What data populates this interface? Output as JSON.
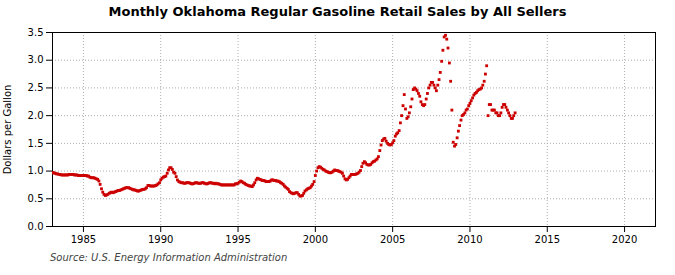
{
  "chart_data": {
    "type": "scatter",
    "title": "Monthly Oklahoma Regular Gasoline Retail Sales by All Sellers",
    "ylabel": "Dollars per Gallon",
    "annotations": [
      "Source: U.S. Energy Information Administration"
    ],
    "color": "#cc0000",
    "marker": "square",
    "grid": true,
    "xlim": [
      1983.0,
      2022.0
    ],
    "ylim": [
      0.0,
      3.5
    ],
    "xticks": [
      1985,
      1990,
      1995,
      2000,
      2005,
      2010,
      2015,
      2020
    ],
    "yticks": [
      {
        "value": 0.0,
        "label": "0.0"
      },
      0.5,
      {
        "value": 1.0,
        "label": "1.0"
      },
      1.5,
      {
        "value": 2.0,
        "label": "2.0"
      },
      2.5,
      {
        "value": 3.0,
        "label": "3.0"
      },
      3.5
    ],
    "x": [
      1983.0,
      1983.08,
      1983.17,
      1983.25,
      1983.33,
      1983.42,
      1983.5,
      1983.58,
      1983.67,
      1983.75,
      1983.83,
      1983.92,
      1984.0,
      1984.08,
      1984.17,
      1984.25,
      1984.33,
      1984.42,
      1984.5,
      1984.58,
      1984.67,
      1984.75,
      1984.83,
      1984.92,
      1985.0,
      1985.08,
      1985.17,
      1985.25,
      1985.33,
      1985.42,
      1985.5,
      1985.58,
      1985.67,
      1985.75,
      1985.83,
      1985.92,
      1986.0,
      1986.08,
      1986.17,
      1986.25,
      1986.33,
      1986.42,
      1986.5,
      1986.58,
      1986.67,
      1986.75,
      1986.83,
      1986.92,
      1987.0,
      1987.08,
      1987.17,
      1987.25,
      1987.33,
      1987.42,
      1987.5,
      1987.58,
      1987.67,
      1987.75,
      1987.83,
      1987.92,
      1988.0,
      1988.08,
      1988.17,
      1988.25,
      1988.33,
      1988.42,
      1988.5,
      1988.58,
      1988.67,
      1988.75,
      1988.83,
      1988.92,
      1989.0,
      1989.08,
      1989.17,
      1989.25,
      1989.33,
      1989.42,
      1989.5,
      1989.58,
      1989.67,
      1989.75,
      1989.83,
      1989.92,
      1990.0,
      1990.08,
      1990.17,
      1990.25,
      1990.33,
      1990.42,
      1990.5,
      1990.58,
      1990.67,
      1990.75,
      1990.83,
      1990.92,
      1991.0,
      1991.08,
      1991.17,
      1991.25,
      1991.33,
      1991.42,
      1991.5,
      1991.58,
      1991.67,
      1991.75,
      1991.83,
      1991.92,
      1992.0,
      1992.08,
      1992.17,
      1992.25,
      1992.33,
      1992.42,
      1992.5,
      1992.58,
      1992.67,
      1992.75,
      1992.83,
      1992.92,
      1993.0,
      1993.08,
      1993.17,
      1993.25,
      1993.33,
      1993.42,
      1993.5,
      1993.58,
      1993.67,
      1993.75,
      1993.83,
      1993.92,
      1994.0,
      1994.08,
      1994.17,
      1994.25,
      1994.33,
      1994.42,
      1994.5,
      1994.58,
      1994.67,
      1994.75,
      1994.83,
      1994.92,
      1995.0,
      1995.08,
      1995.17,
      1995.25,
      1995.33,
      1995.42,
      1995.5,
      1995.58,
      1995.67,
      1995.75,
      1995.83,
      1995.92,
      1996.0,
      1996.08,
      1996.17,
      1996.25,
      1996.33,
      1996.42,
      1996.5,
      1996.58,
      1996.67,
      1996.75,
      1996.83,
      1996.92,
      1997.0,
      1997.08,
      1997.17,
      1997.25,
      1997.33,
      1997.42,
      1997.5,
      1997.58,
      1997.67,
      1997.75,
      1997.83,
      1997.92,
      1998.0,
      1998.08,
      1998.17,
      1998.25,
      1998.33,
      1998.42,
      1998.5,
      1998.58,
      1998.67,
      1998.75,
      1998.83,
      1998.92,
      1999.0,
      1999.08,
      1999.17,
      1999.25,
      1999.33,
      1999.42,
      1999.5,
      1999.58,
      1999.67,
      1999.75,
      1999.83,
      1999.92,
      2000.0,
      2000.08,
      2000.17,
      2000.25,
      2000.33,
      2000.42,
      2000.5,
      2000.58,
      2000.67,
      2000.75,
      2000.83,
      2000.92,
      2001.0,
      2001.08,
      2001.17,
      2001.25,
      2001.33,
      2001.42,
      2001.5,
      2001.58,
      2001.67,
      2001.75,
      2001.83,
      2001.92,
      2002.0,
      2002.08,
      2002.17,
      2002.25,
      2002.33,
      2002.42,
      2002.5,
      2002.58,
      2002.67,
      2002.75,
      2002.83,
      2002.92,
      2003.0,
      2003.08,
      2003.17,
      2003.25,
      2003.33,
      2003.42,
      2003.5,
      2003.58,
      2003.67,
      2003.75,
      2003.83,
      2003.92,
      2004.0,
      2004.08,
      2004.17,
      2004.25,
      2004.33,
      2004.42,
      2004.5,
      2004.58,
      2004.67,
      2004.75,
      2004.83,
      2004.92,
      2005.0,
      2005.08,
      2005.17,
      2005.25,
      2005.33,
      2005.42,
      2005.5,
      2005.58,
      2005.67,
      2005.75,
      2005.83,
      2005.92,
      2006.0,
      2006.08,
      2006.17,
      2006.25,
      2006.33,
      2006.42,
      2006.5,
      2006.58,
      2006.67,
      2006.75,
      2006.83,
      2006.92,
      2007.0,
      2007.08,
      2007.17,
      2007.25,
      2007.33,
      2007.42,
      2007.5,
      2007.58,
      2007.67,
      2007.75,
      2007.83,
      2007.92,
      2008.0,
      2008.08,
      2008.17,
      2008.25,
      2008.33,
      2008.42,
      2008.5,
      2008.58,
      2008.67,
      2008.75,
      2008.83,
      2008.92,
      2009.0,
      2009.08,
      2009.17,
      2009.25,
      2009.33,
      2009.42,
      2009.5,
      2009.58,
      2009.67,
      2009.75,
      2009.83,
      2009.92,
      2010.0,
      2010.08,
      2010.17,
      2010.25,
      2010.33,
      2010.42,
      2010.5,
      2010.58,
      2010.67,
      2010.75,
      2010.83,
      2010.92,
      2011.0,
      2011.08,
      2011.17,
      2011.25,
      2011.33,
      2011.42,
      2011.5,
      2011.58,
      2011.67,
      2011.75,
      2011.83,
      2011.92,
      2012.0,
      2012.08,
      2012.17,
      2012.25,
      2012.33,
      2012.42,
      2012.5,
      2012.58,
      2012.67,
      2012.75,
      2012.83,
      2012.92
    ],
    "values": [
      0.97,
      0.97,
      0.96,
      0.95,
      0.95,
      0.94,
      0.94,
      0.93,
      0.93,
      0.93,
      0.93,
      0.93,
      0.93,
      0.94,
      0.94,
      0.94,
      0.94,
      0.93,
      0.93,
      0.93,
      0.92,
      0.92,
      0.92,
      0.92,
      0.92,
      0.92,
      0.92,
      0.91,
      0.91,
      0.89,
      0.88,
      0.88,
      0.88,
      0.87,
      0.86,
      0.85,
      0.82,
      0.76,
      0.68,
      0.62,
      0.58,
      0.56,
      0.57,
      0.58,
      0.6,
      0.61,
      0.62,
      0.61,
      0.62,
      0.63,
      0.64,
      0.65,
      0.65,
      0.66,
      0.67,
      0.68,
      0.69,
      0.7,
      0.7,
      0.7,
      0.69,
      0.68,
      0.67,
      0.66,
      0.66,
      0.65,
      0.64,
      0.64,
      0.65,
      0.66,
      0.67,
      0.67,
      0.68,
      0.7,
      0.74,
      0.74,
      0.73,
      0.73,
      0.73,
      0.73,
      0.74,
      0.75,
      0.77,
      0.79,
      0.84,
      0.87,
      0.89,
      0.9,
      0.91,
      0.96,
      1.02,
      1.06,
      1.06,
      1.03,
      0.98,
      0.96,
      0.9,
      0.84,
      0.81,
      0.8,
      0.79,
      0.79,
      0.78,
      0.78,
      0.79,
      0.79,
      0.79,
      0.78,
      0.77,
      0.77,
      0.78,
      0.79,
      0.79,
      0.78,
      0.78,
      0.78,
      0.79,
      0.79,
      0.78,
      0.77,
      0.77,
      0.78,
      0.79,
      0.79,
      0.78,
      0.78,
      0.77,
      0.78,
      0.77,
      0.77,
      0.76,
      0.75,
      0.75,
      0.75,
      0.75,
      0.75,
      0.75,
      0.75,
      0.75,
      0.75,
      0.75,
      0.75,
      0.77,
      0.77,
      0.78,
      0.8,
      0.82,
      0.81,
      0.79,
      0.78,
      0.76,
      0.75,
      0.74,
      0.73,
      0.73,
      0.72,
      0.75,
      0.79,
      0.84,
      0.87,
      0.86,
      0.85,
      0.84,
      0.83,
      0.83,
      0.82,
      0.81,
      0.81,
      0.81,
      0.82,
      0.84,
      0.84,
      0.83,
      0.83,
      0.82,
      0.82,
      0.81,
      0.79,
      0.78,
      0.76,
      0.73,
      0.71,
      0.69,
      0.67,
      0.63,
      0.61,
      0.6,
      0.59,
      0.6,
      0.61,
      0.61,
      0.58,
      0.55,
      0.55,
      0.56,
      0.6,
      0.64,
      0.66,
      0.68,
      0.69,
      0.7,
      0.73,
      0.76,
      0.81,
      0.92,
      1.0,
      1.06,
      1.08,
      1.07,
      1.05,
      1.03,
      1.02,
      1.0,
      0.99,
      0.98,
      0.97,
      0.97,
      0.98,
      1.0,
      1.02,
      1.01,
      1.01,
      1.0,
      0.99,
      0.98,
      0.96,
      0.91,
      0.86,
      0.84,
      0.85,
      0.88,
      0.91,
      0.94,
      0.94,
      0.94,
      0.94,
      0.95,
      0.96,
      0.98,
      1.01,
      1.08,
      1.14,
      1.17,
      1.15,
      1.12,
      1.11,
      1.11,
      1.12,
      1.15,
      1.17,
      1.18,
      1.2,
      1.22,
      1.26,
      1.37,
      1.47,
      1.55,
      1.58,
      1.59,
      1.54,
      1.5,
      1.48,
      1.47,
      1.48,
      1.51,
      1.55,
      1.63,
      1.67,
      1.69,
      1.73,
      1.87,
      2.0,
      2.18,
      2.38,
      2.12,
      1.95,
      1.98,
      2.05,
      2.16,
      2.3,
      2.47,
      2.5,
      2.48,
      2.45,
      2.4,
      2.35,
      2.25,
      2.2,
      2.18,
      2.2,
      2.3,
      2.4,
      2.5,
      2.55,
      2.6,
      2.6,
      2.55,
      2.5,
      2.45,
      2.55,
      2.65,
      2.78,
      2.98,
      3.18,
      3.42,
      3.45,
      3.38,
      3.22,
      2.95,
      2.62,
      2.1,
      1.52,
      1.45,
      1.48,
      1.6,
      1.72,
      1.82,
      1.92,
      2.0,
      2.02,
      2.05,
      2.1,
      2.12,
      2.18,
      2.22,
      2.27,
      2.32,
      2.37,
      2.4,
      2.42,
      2.45,
      2.47,
      2.48,
      2.5,
      2.55,
      2.62,
      2.75,
      2.9,
      2.0,
      2.2,
      2.2,
      2.1,
      2.1,
      2.1,
      2.05,
      2.05,
      2.0,
      2.0,
      2.05,
      2.15,
      2.2,
      2.2,
      2.15,
      2.1,
      2.05,
      2.0,
      1.95,
      1.95,
      2.0,
      2.05
    ]
  }
}
